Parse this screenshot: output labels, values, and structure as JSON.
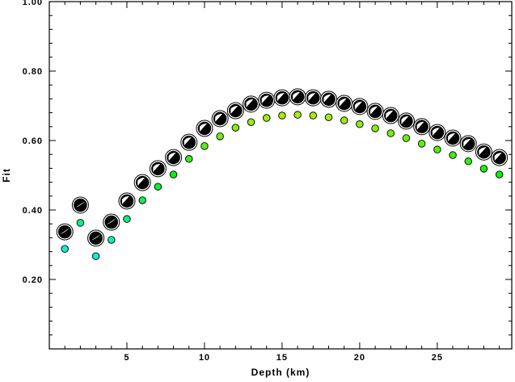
{
  "chart_data": {
    "type": "scatter",
    "title": "",
    "xlabel": "Depth (km)",
    "ylabel": "Fit",
    "xlim": [
      0,
      29.8
    ],
    "ylim": [
      0,
      1.0
    ],
    "grid": false,
    "xticks": [
      "5",
      "10",
      "15",
      "20",
      "25"
    ],
    "xtick_values": [
      5,
      10,
      15,
      20,
      25
    ],
    "yticks": [
      "0.20",
      "0.40",
      "0.60",
      "0.80",
      "1.00"
    ],
    "ytick_values": [
      0.2,
      0.4,
      0.6,
      0.8,
      1.0
    ],
    "x": [
      1,
      2,
      3,
      4,
      5,
      6,
      7,
      8,
      9,
      10,
      11,
      12,
      13,
      14,
      15,
      16,
      17,
      18,
      19,
      20,
      21,
      22,
      23,
      24,
      25,
      26,
      27,
      28,
      29
    ],
    "series": [
      {
        "name": "mechanism fit (beachball)",
        "values": [
          0.337,
          0.414,
          0.319,
          0.365,
          0.426,
          0.479,
          0.519,
          0.551,
          0.595,
          0.635,
          0.663,
          0.686,
          0.705,
          0.716,
          0.723,
          0.726,
          0.723,
          0.719,
          0.707,
          0.698,
          0.684,
          0.672,
          0.656,
          0.64,
          0.623,
          0.607,
          0.591,
          0.567,
          0.551
        ]
      },
      {
        "name": "fit (colored dot)",
        "values": [
          0.288,
          0.363,
          0.267,
          0.314,
          0.374,
          0.428,
          0.467,
          0.502,
          0.547,
          0.584,
          0.612,
          0.637,
          0.653,
          0.665,
          0.672,
          0.674,
          0.672,
          0.667,
          0.658,
          0.647,
          0.635,
          0.621,
          0.607,
          0.591,
          0.574,
          0.558,
          0.54,
          0.519,
          0.502
        ]
      }
    ]
  }
}
